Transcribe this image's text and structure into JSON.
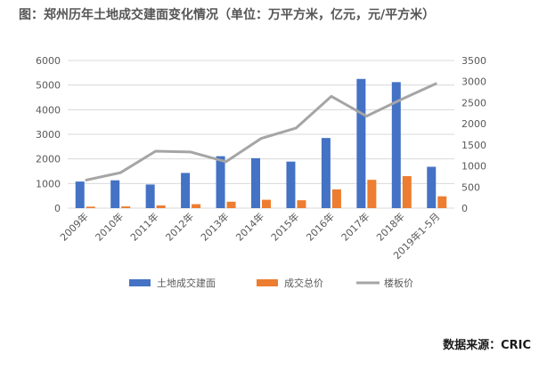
{
  "title": "图：郑州历年土地成交建面变化情况（单位：万平方米，亿元，元/平方米）",
  "source": "数据来源：CRIC",
  "colors": {
    "area": "#4472C4",
    "total": "#ED7D31",
    "price": "#A5A5A5",
    "axis_text": "#595959",
    "grid": "#D9D9D9"
  },
  "chart_data": {
    "type": "bar",
    "categories": [
      "2009年",
      "2010年",
      "2011年",
      "2012年",
      "2013年",
      "2014年",
      "2015年",
      "2016年",
      "2017年",
      "2018年",
      "2019年1-5月"
    ],
    "series": [
      {
        "name": "土地成交建面",
        "type": "bar",
        "axis": "left",
        "values": [
          1080,
          1130,
          960,
          1430,
          2110,
          2030,
          1890,
          2850,
          5250,
          5120,
          1680
        ]
      },
      {
        "name": "成交总价",
        "type": "bar",
        "axis": "left",
        "values": [
          60,
          70,
          110,
          160,
          260,
          340,
          320,
          760,
          1150,
          1300,
          480
        ]
      },
      {
        "name": "楼板价",
        "type": "line",
        "axis": "right",
        "values": [
          660,
          840,
          1350,
          1330,
          1100,
          1650,
          1900,
          2650,
          2180,
          2580,
          2960
        ]
      }
    ],
    "y_left": {
      "min": 0,
      "max": 6000,
      "ticks": [
        0,
        1000,
        2000,
        3000,
        4000,
        5000,
        6000
      ]
    },
    "y_right": {
      "min": 0,
      "max": 3500,
      "ticks": [
        0,
        500,
        1000,
        1500,
        2000,
        2500,
        3000,
        3500
      ]
    },
    "grid": true,
    "legend_position": "bottom"
  }
}
